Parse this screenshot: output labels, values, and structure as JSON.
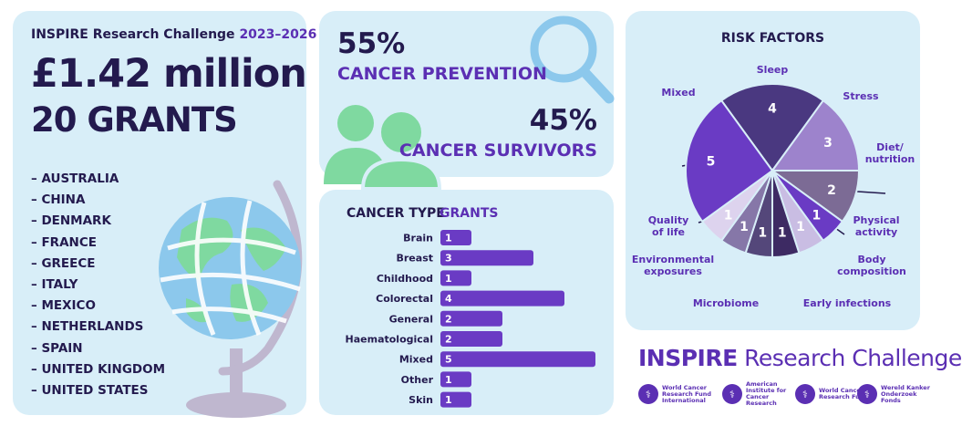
{
  "left": {
    "title": "INSPIRE Research Challenge",
    "years": "2023–2026",
    "money": "£1.42 million",
    "grants": "20 GRANTS",
    "countries": [
      "– AUSTRALIA",
      "– CHINA",
      "– DENMARK",
      "– FRANCE",
      "– GREECE",
      "– ITALY",
      "– MEXICO",
      "– NETHERLANDS",
      "– SPAIN",
      "– UNITED KINGDOM",
      "– UNITED STATES"
    ]
  },
  "split": {
    "prevention_pct": "55%",
    "prevention_label": "CANCER PREVENTION",
    "survivors_pct": "45%",
    "survivors_label": "CANCER SURVIVORS"
  },
  "cancer_type": {
    "header_type": "CANCER TYPE",
    "header_grants": "GRANTS"
  },
  "risk": {
    "title": "RISK FACTORS"
  },
  "brand": {
    "bold": "INSPIRE",
    "light": " Research Challenge",
    "logos": [
      "World Cancer Research Fund International",
      "American Institute for Cancer Research",
      "World Cancer Research Fund",
      "Wereld Kanker Onderzoek Fonds"
    ]
  },
  "colors": {
    "navy": "#231a4e",
    "purple": "#5b2fb3",
    "panel": "#d8eef8",
    "green": "#7fd9a0",
    "blue": "#8cc8ec"
  },
  "chart_data": [
    {
      "type": "bar",
      "categories": [
        "Brain",
        "Breast",
        "Childhood",
        "Colorectal",
        "General",
        "Haematological",
        "Mixed",
        "Other",
        "Skin"
      ],
      "values": [
        1,
        3,
        1,
        4,
        2,
        2,
        5,
        1,
        1
      ],
      "xlim": [
        0,
        5
      ]
    },
    {
      "type": "pie",
      "slices": [
        {
          "label": "Sleep",
          "value": 4,
          "color": "#4a3880"
        },
        {
          "label": "Stress",
          "value": 3,
          "color": "#9d83cc"
        },
        {
          "label": "Diet/\nnutrition",
          "value": 2,
          "color": "#7c6b95"
        },
        {
          "label": "Physical\nactivity",
          "value": 1,
          "color": "#6a3bc4"
        },
        {
          "label": "Body\ncomposition",
          "value": 1,
          "color": "#c9bde3"
        },
        {
          "label": "Early infections",
          "value": 1,
          "color": "#3d2a63"
        },
        {
          "label": "Microbiome",
          "value": 1,
          "color": "#54477a"
        },
        {
          "label": "Environmental\nexposures",
          "value": 1,
          "color": "#8677a8"
        },
        {
          "label": "Quality\nof life",
          "value": 1,
          "color": "#ddd3ee"
        },
        {
          "label": "Mixed",
          "value": 5,
          "color": "#6a3bc4"
        }
      ]
    }
  ]
}
